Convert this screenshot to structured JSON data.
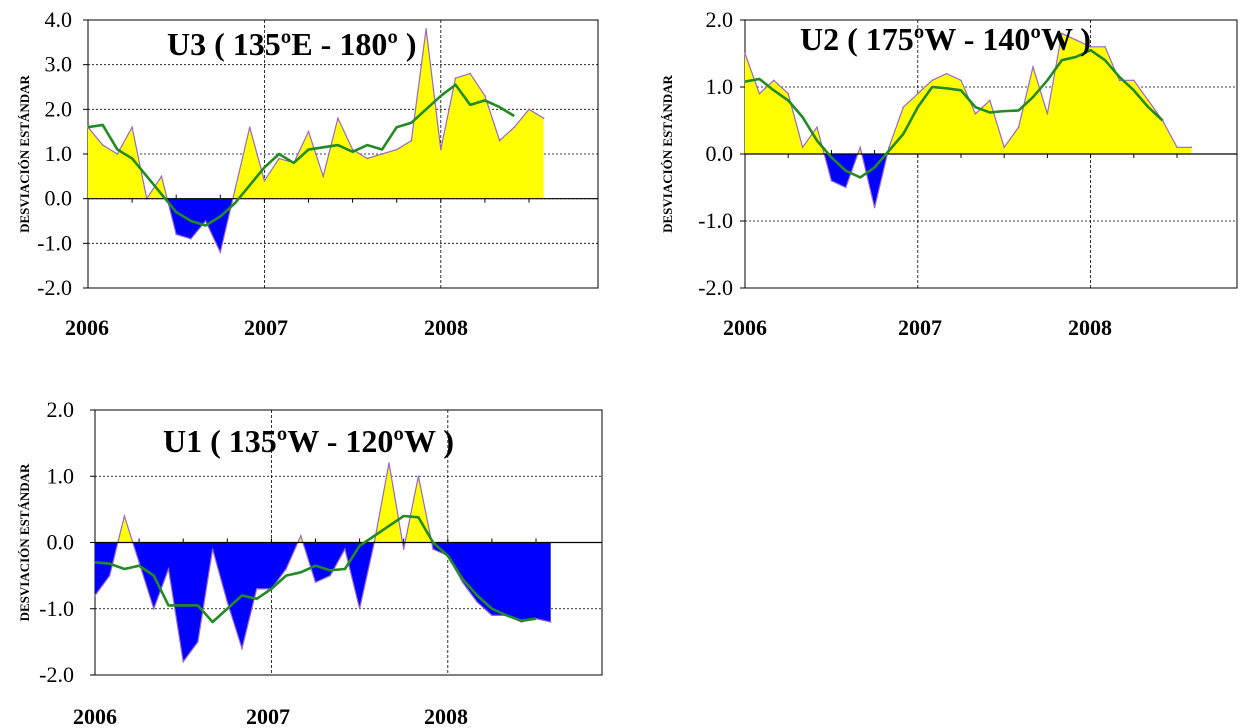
{
  "colors": {
    "positive_fill": "#ffff00",
    "negative_fill": "#0000ff",
    "outline": "#9966cc",
    "smooth_line": "#228b22",
    "grid": "#000000"
  },
  "chart_data": [
    {
      "type": "area",
      "title": "U3 ( 135ºE - 180º )",
      "ylabel": "DESVIACIÓN ESTÁNDAR",
      "xlabel": "",
      "ylim": [
        -2.0,
        4.0
      ],
      "y_ticks": [
        "4.0",
        "3.0",
        "2.0",
        "1.0",
        "0.0",
        "-1.0",
        "-2.0"
      ],
      "x_ticks": [
        "2006",
        "2007",
        "2008"
      ],
      "x": [
        "2006-01",
        "2006-02",
        "2006-03",
        "2006-04",
        "2006-05",
        "2006-06",
        "2006-07",
        "2006-08",
        "2006-09",
        "2006-10",
        "2006-11",
        "2006-12",
        "2007-01",
        "2007-02",
        "2007-03",
        "2007-04",
        "2007-05",
        "2007-06",
        "2007-07",
        "2007-08",
        "2007-09",
        "2007-10",
        "2007-11",
        "2007-12",
        "2008-01",
        "2008-02",
        "2008-03",
        "2008-04",
        "2008-05",
        "2008-06",
        "2008-07",
        "2008-08"
      ],
      "series": [
        {
          "values": [
            1.6,
            1.2,
            1.0,
            1.6,
            0.0,
            0.5,
            -0.8,
            -0.9,
            -0.5,
            -1.2,
            0.2,
            1.6,
            0.4,
            0.9,
            0.8,
            1.5,
            0.5,
            1.8,
            1.1,
            0.9,
            1.0,
            1.1,
            1.3,
            3.8,
            1.1,
            2.7,
            2.8,
            2.3,
            1.3,
            1.6,
            2.0,
            1.8
          ]
        },
        {
          "values": [
            1.6,
            1.65,
            1.1,
            0.9,
            0.5,
            0.1,
            -0.3,
            -0.5,
            -0.6,
            -0.4,
            -0.1,
            0.3,
            0.7,
            1.0,
            0.8,
            1.1,
            1.15,
            1.2,
            1.05,
            1.2,
            1.1,
            1.6,
            1.7,
            2.0,
            2.3,
            2.55,
            2.1,
            2.2,
            2.05,
            1.85,
            null,
            null
          ]
        }
      ]
    },
    {
      "type": "area",
      "title": "U2 ( 175ºW - 140ºW )",
      "ylabel": "DESVIACIÓN ESTÁNDAR",
      "xlabel": "",
      "ylim": [
        -2.0,
        2.0
      ],
      "y_ticks": [
        "2.0",
        "1.0",
        "0.0",
        "-1.0",
        "-2.0"
      ],
      "x_ticks": [
        "2006",
        "2007",
        "2008"
      ],
      "x": [
        "2006-01",
        "2006-02",
        "2006-03",
        "2006-04",
        "2006-05",
        "2006-06",
        "2006-07",
        "2006-08",
        "2006-09",
        "2006-10",
        "2006-11",
        "2006-12",
        "2007-01",
        "2007-02",
        "2007-03",
        "2007-04",
        "2007-05",
        "2007-06",
        "2007-07",
        "2007-08",
        "2007-09",
        "2007-10",
        "2007-11",
        "2007-12",
        "2008-01",
        "2008-02",
        "2008-03",
        "2008-04",
        "2008-05",
        "2008-06",
        "2008-07",
        "2008-08"
      ],
      "series": [
        {
          "values": [
            1.5,
            0.9,
            1.1,
            0.9,
            0.1,
            0.4,
            -0.4,
            -0.5,
            0.1,
            -0.8,
            0.1,
            0.7,
            0.9,
            1.1,
            1.2,
            1.1,
            0.6,
            0.8,
            0.1,
            0.4,
            1.3,
            0.6,
            1.8,
            1.7,
            1.6,
            1.6,
            1.1,
            1.1,
            0.8,
            0.5,
            0.1,
            0.1
          ]
        },
        {
          "values": [
            1.08,
            1.12,
            0.95,
            0.8,
            0.55,
            0.2,
            -0.05,
            -0.25,
            -0.35,
            -0.2,
            0.05,
            0.3,
            0.7,
            1.0,
            0.98,
            0.95,
            0.7,
            0.62,
            0.64,
            0.65,
            0.85,
            1.1,
            1.4,
            1.45,
            1.55,
            1.4,
            1.15,
            0.95,
            0.7,
            0.5,
            null,
            null
          ]
        }
      ]
    },
    {
      "type": "area",
      "title": "U1 ( 135ºW - 120ºW )",
      "ylabel": "DESVIACIÓN ESTÁNDAR",
      "xlabel": "",
      "ylim": [
        -2.0,
        2.0
      ],
      "y_ticks": [
        "2.0",
        "1.0",
        "0.0",
        "-1.0",
        "-2.0"
      ],
      "x_ticks": [
        "2006",
        "2007",
        "2008"
      ],
      "x": [
        "2006-01",
        "2006-02",
        "2006-03",
        "2006-04",
        "2006-05",
        "2006-06",
        "2006-07",
        "2006-08",
        "2006-09",
        "2006-10",
        "2006-11",
        "2006-12",
        "2007-01",
        "2007-02",
        "2007-03",
        "2007-04",
        "2007-05",
        "2007-06",
        "2007-07",
        "2007-08",
        "2007-09",
        "2007-10",
        "2007-11",
        "2007-12",
        "2008-01",
        "2008-02",
        "2008-03",
        "2008-04",
        "2008-05",
        "2008-06",
        "2008-07",
        "2008-08"
      ],
      "series": [
        {
          "values": [
            -0.8,
            -0.5,
            0.4,
            -0.3,
            -1.0,
            -0.4,
            -1.8,
            -1.5,
            -0.1,
            -0.9,
            -1.6,
            -0.7,
            -0.7,
            -0.4,
            0.1,
            -0.6,
            -0.5,
            -0.1,
            -1.0,
            0.0,
            1.2,
            -0.1,
            1.0,
            -0.1,
            -0.2,
            -0.6,
            -0.9,
            -1.1,
            -1.1,
            -1.2,
            -1.15,
            -1.2
          ]
        },
        {
          "values": [
            -0.3,
            -0.32,
            -0.4,
            -0.35,
            -0.5,
            -0.95,
            -0.95,
            -0.95,
            -1.2,
            -1.0,
            -0.8,
            -0.85,
            -0.7,
            -0.5,
            -0.45,
            -0.35,
            -0.42,
            -0.4,
            -0.05,
            0.1,
            0.25,
            0.4,
            0.38,
            0.0,
            -0.2,
            -0.55,
            -0.8,
            -1.0,
            -1.1,
            -1.18,
            -1.15,
            null
          ]
        }
      ]
    }
  ]
}
